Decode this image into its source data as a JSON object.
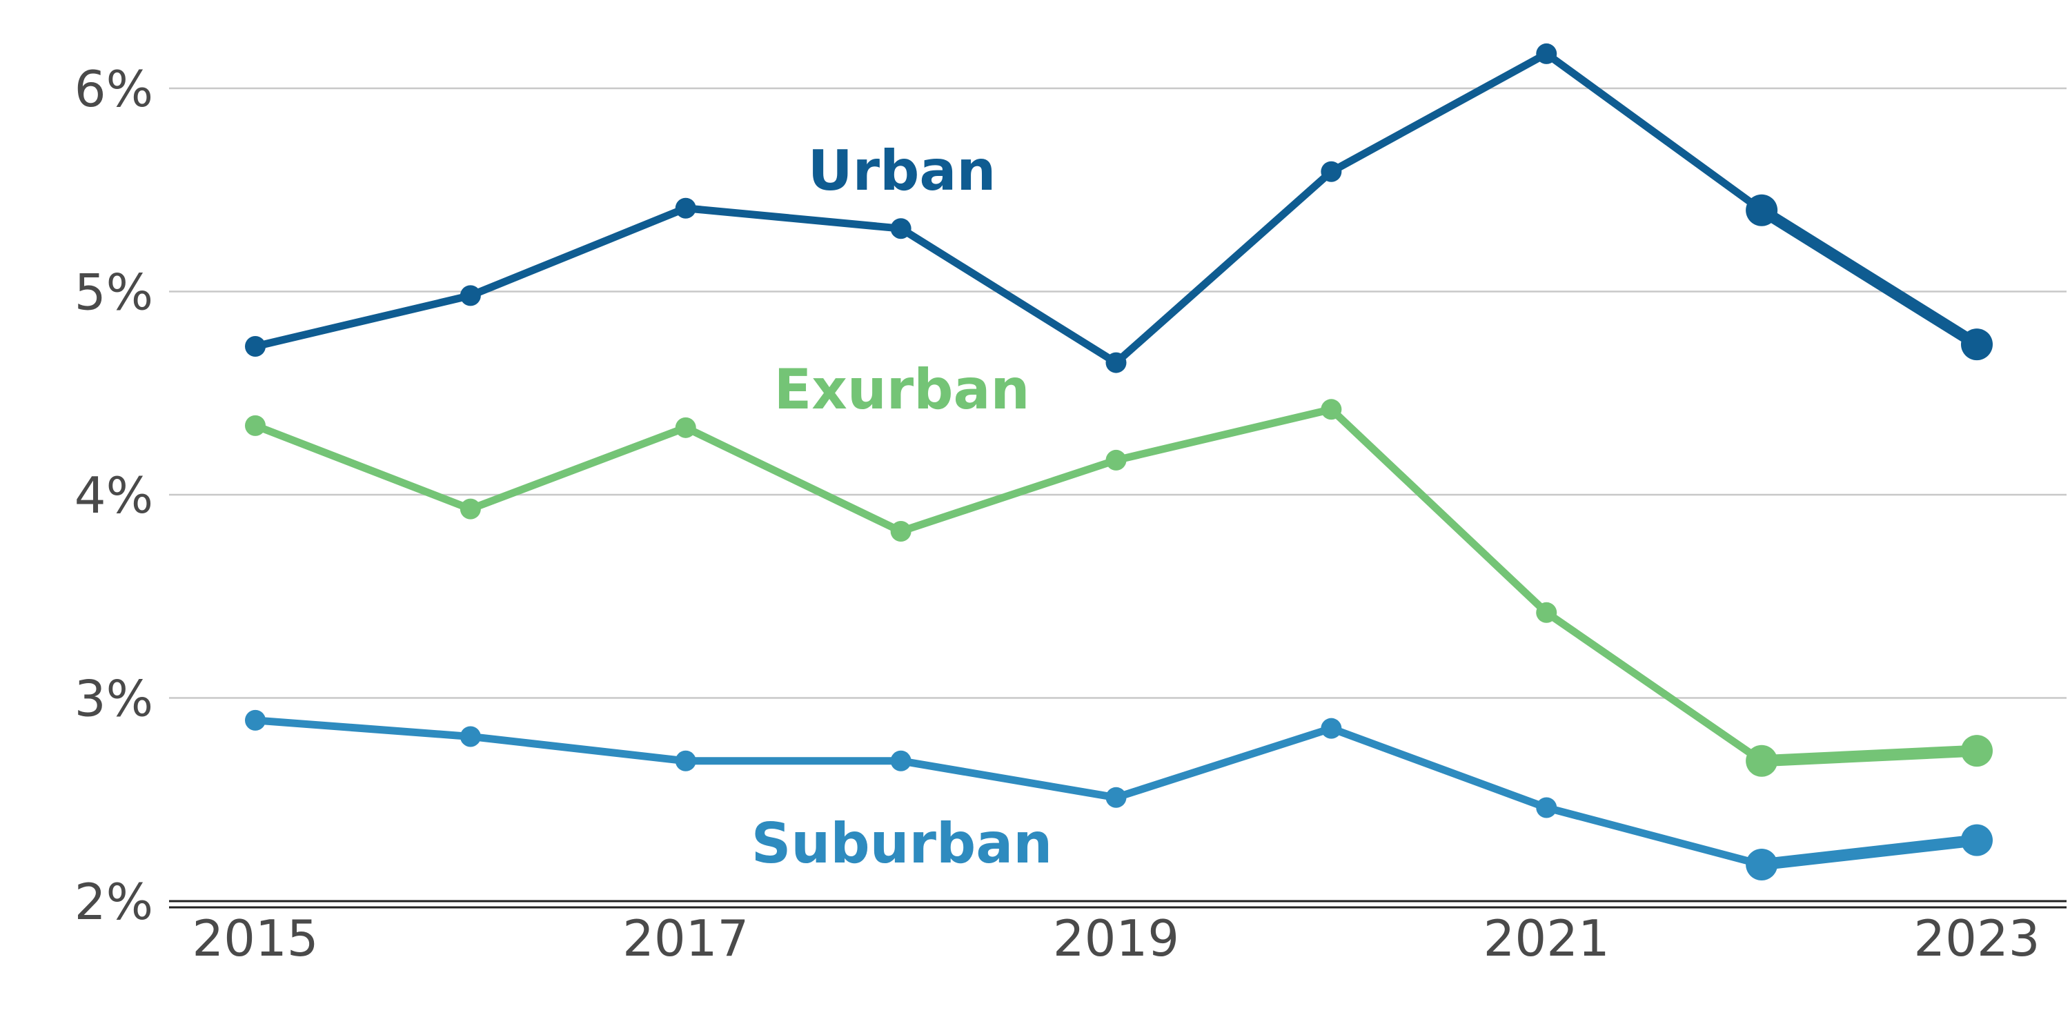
{
  "chart_data": {
    "type": "line",
    "title": "",
    "xlabel": "",
    "ylabel": "",
    "x": [
      2015,
      2016,
      2017,
      2018,
      2019,
      2020,
      2021,
      2022,
      2023
    ],
    "x_ticks": [
      "2015",
      "2017",
      "2019",
      "2021",
      "2023"
    ],
    "y_ticks": [
      "2%",
      "3%",
      "4%",
      "5%",
      "6%"
    ],
    "ylim": [
      2,
      6.2
    ],
    "grid": "horizontal",
    "legend": "none (direct labels)",
    "series": [
      {
        "name": "Urban",
        "color": "#0f5c91",
        "values": [
          4.73,
          4.98,
          5.41,
          5.31,
          4.65,
          5.59,
          6.17,
          5.4,
          4.74
        ],
        "highlight_from_index": 7
      },
      {
        "name": "Exurban",
        "color": "#74c476",
        "values": [
          4.34,
          3.93,
          4.33,
          3.82,
          4.17,
          4.42,
          3.42,
          2.69,
          2.74
        ],
        "highlight_from_index": 7
      },
      {
        "name": "Suburban",
        "color": "#2e8bbf",
        "values": [
          2.89,
          2.81,
          2.69,
          2.69,
          2.51,
          2.85,
          2.46,
          2.18,
          2.3
        ],
        "highlight_from_index": 7
      }
    ]
  }
}
